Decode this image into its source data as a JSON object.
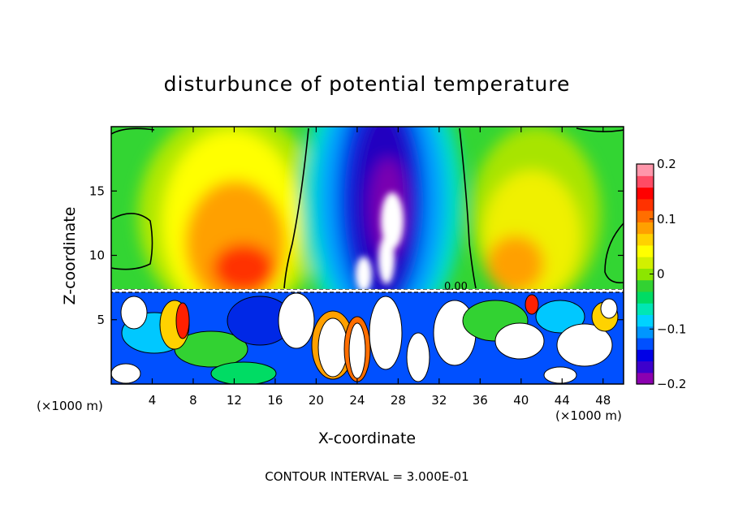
{
  "chart_data": {
    "type": "heatmap",
    "title": "disturbunce of potential temperature",
    "xlabel": "X-coordinate",
    "ylabel": "Z-coordinate",
    "x_unit_left": "(×1000 m)",
    "x_unit_right": "(×1000 m)",
    "footnote": "CONTOUR INTERVAL = 3.000E-01",
    "xlim": [
      0,
      50
    ],
    "ylim": [
      0,
      20
    ],
    "xticks": [
      4,
      8,
      12,
      16,
      20,
      24,
      28,
      32,
      36,
      40,
      44,
      48
    ],
    "yticks": [
      5,
      10,
      15
    ],
    "colorbar": {
      "range": [
        -0.2,
        0.2
      ],
      "tick_values": [
        0.2,
        0.1,
        0,
        -0.1,
        -0.2
      ],
      "tick_labels": [
        "0.2",
        "0.1",
        "0",
        "−0.1",
        "−0.2"
      ],
      "colors": [
        "#8b00b0",
        "#3d00cc",
        "#0000e6",
        "#0050ff",
        "#0096ff",
        "#00d2ff",
        "#00e6b4",
        "#00dc64",
        "#32d232",
        "#8ce600",
        "#d2f000",
        "#ffff00",
        "#ffd200",
        "#ffa000",
        "#ff6e00",
        "#ff3200",
        "#ff0000",
        "#ff4b64",
        "#ff96aa"
      ]
    },
    "contour_labels": [
      "0.00",
      "0",
      "0",
      "0"
    ],
    "features": [
      {
        "name": "negative core",
        "x": 27,
        "z": 15,
        "value": -0.2
      },
      {
        "name": "positive left lobe",
        "x": 12,
        "z": 10,
        "value": 0.15
      },
      {
        "name": "positive right lobe",
        "x": 39,
        "z": 9,
        "value": 0.12
      },
      {
        "name": "near-zero left edge",
        "x": 3,
        "z": 12,
        "value": 0
      },
      {
        "name": "near-zero right edge",
        "x": 46,
        "z": 16,
        "value": 0
      },
      {
        "name": "turbulent layer top",
        "x": 25,
        "z": 7.3,
        "value": 0
      }
    ]
  }
}
